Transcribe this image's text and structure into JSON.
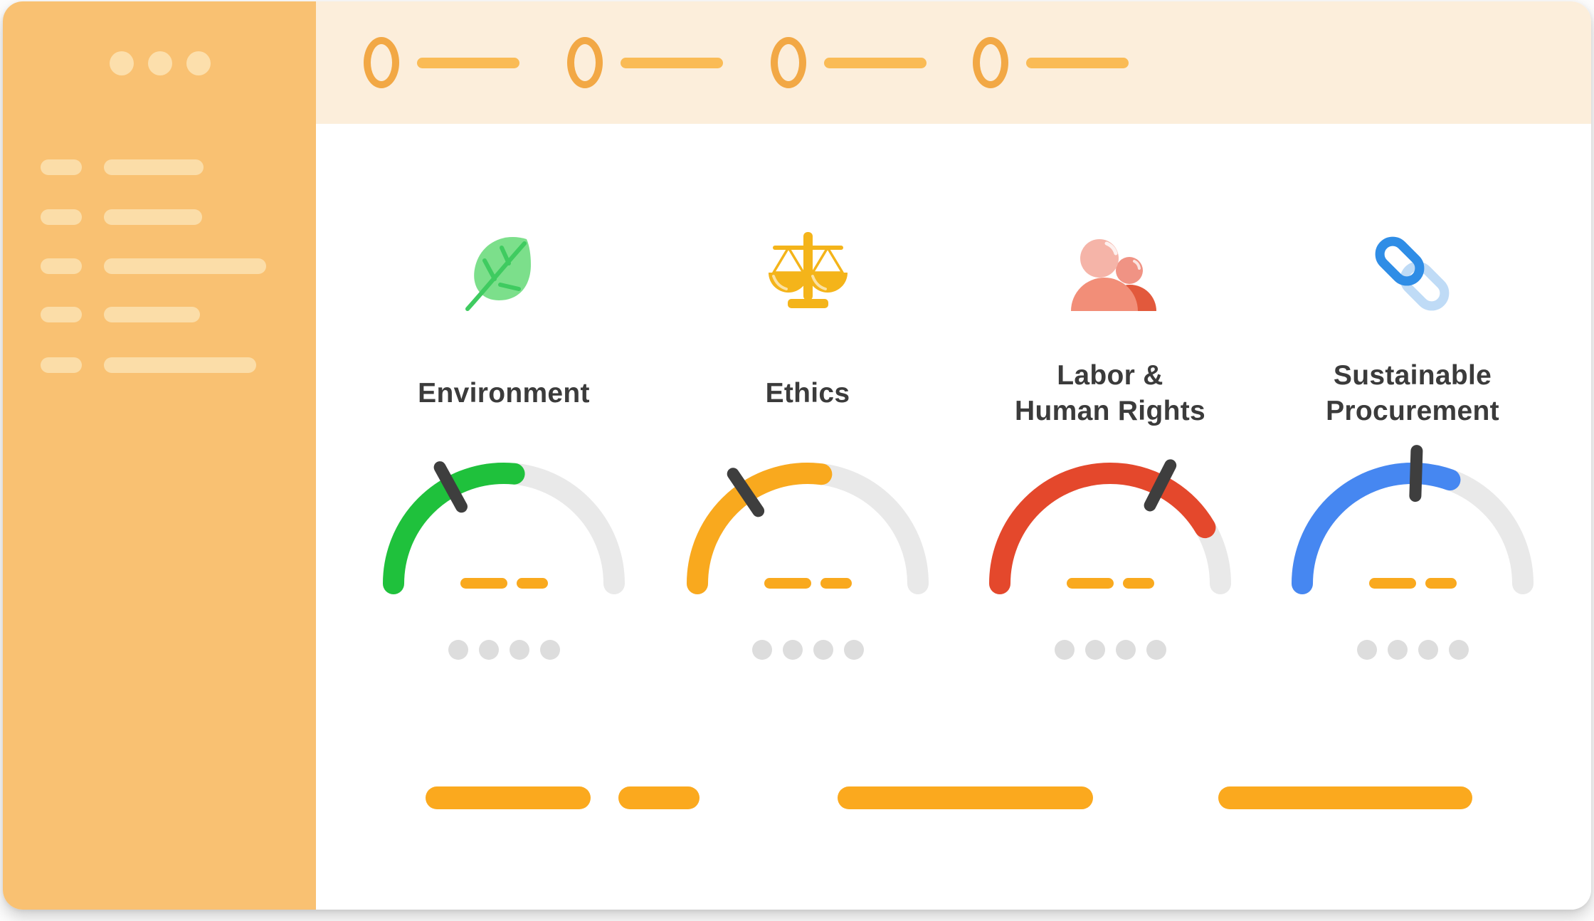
{
  "colors": {
    "sidebar_bg": "#F9C172",
    "sidebar_skeleton": "#FBDDA8",
    "topbar_bg": "#FCEEDB",
    "stepper_ring": "#F2A845",
    "stepper_line": "#FABB55",
    "content_bg": "#FFFFFF",
    "title_text": "#3B3B3B",
    "gauge_track": "#E9E9E9",
    "gauge_needle": "#3E3E3E",
    "placeholder_orange": "#F9A91E",
    "bottom_bar_orange": "#FBA91E",
    "placeholder_dot_gray": "#DDDDDD"
  },
  "window": {
    "control_dot_count": 3,
    "sidebar_nav_row_count": 5
  },
  "stepper": {
    "step_count": 4
  },
  "categories": [
    {
      "label": "Environment",
      "icon": "leaf-icon",
      "color": "#1FC13C",
      "gauge": {
        "fill_pct": 53,
        "needle_pct": 34
      }
    },
    {
      "label": "Ethics",
      "icon": "scales-icon",
      "color": "#F9A91E",
      "gauge": {
        "fill_pct": 54,
        "needle_pct": 31
      }
    },
    {
      "label": "Labor &\nHuman Rights",
      "icon": "people-icon",
      "color": "#E4482C",
      "gauge": {
        "fill_pct": 83,
        "needle_pct": 65
      }
    },
    {
      "label": "Sustainable\nProcurement",
      "icon": "chain-link-icon",
      "color": "#4687F1",
      "gauge": {
        "fill_pct": 61,
        "needle_pct": 51
      }
    }
  ],
  "chart_data": [
    {
      "type": "gauge",
      "title": "Environment",
      "range": [
        0,
        100
      ],
      "fill_pct": 53,
      "needle_pct": 34,
      "color": "#1FC13C",
      "track_color": "#E9E9E9",
      "value_labels_shown": false
    },
    {
      "type": "gauge",
      "title": "Ethics",
      "range": [
        0,
        100
      ],
      "fill_pct": 54,
      "needle_pct": 31,
      "color": "#F9A91E",
      "track_color": "#E9E9E9",
      "value_labels_shown": false
    },
    {
      "type": "gauge",
      "title": "Labor & Human Rights",
      "range": [
        0,
        100
      ],
      "fill_pct": 83,
      "needle_pct": 65,
      "color": "#E4482C",
      "track_color": "#E9E9E9",
      "value_labels_shown": false
    },
    {
      "type": "gauge",
      "title": "Sustainable Procurement",
      "range": [
        0,
        100
      ],
      "fill_pct": 61,
      "needle_pct": 51,
      "color": "#4687F1",
      "track_color": "#E9E9E9",
      "value_labels_shown": false
    }
  ]
}
